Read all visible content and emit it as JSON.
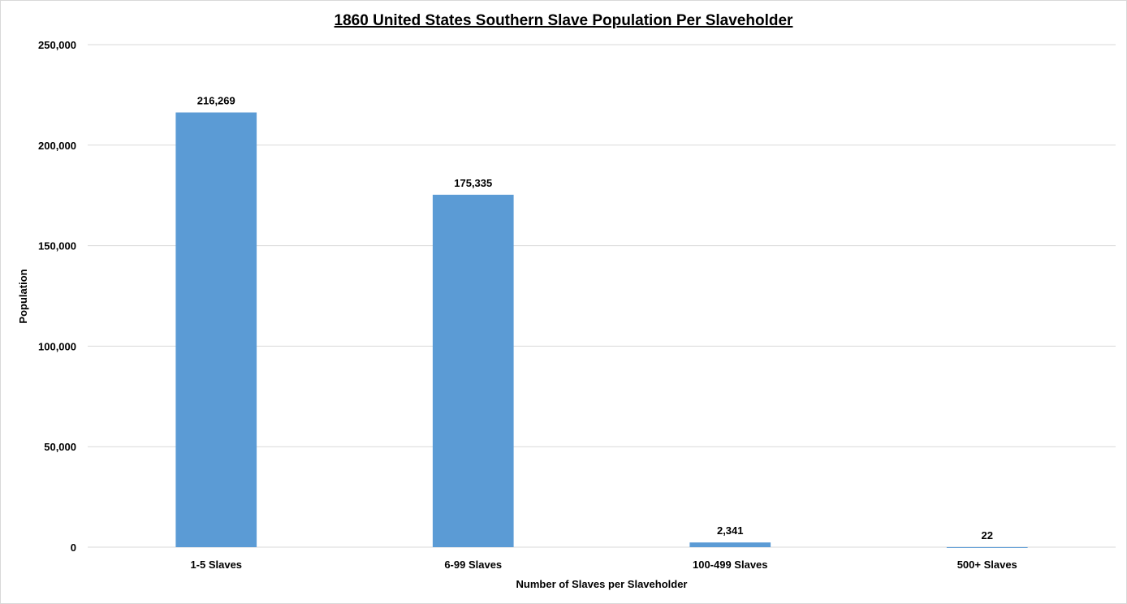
{
  "chart_data": {
    "type": "bar",
    "title": "1860 United States Southern Slave Population Per Slaveholder",
    "xlabel": "Number of Slaves per Slaveholder",
    "ylabel": "Population",
    "categories": [
      "1-5 Slaves",
      "6-99 Slaves",
      "100-499 Slaves",
      "500+ Slaves"
    ],
    "values": [
      216269,
      175335,
      2341,
      22
    ],
    "value_labels": [
      "216,269",
      "175,335",
      "2,341",
      "22"
    ],
    "ylim": [
      0,
      250000
    ],
    "yticks": [
      0,
      50000,
      100000,
      150000,
      200000,
      250000
    ],
    "ytick_labels": [
      "0",
      "50,000",
      "100,000",
      "150,000",
      "200,000",
      "250,000"
    ],
    "grid": true,
    "legend": "none",
    "bar_color": "#5b9bd5",
    "grid_color": "#d9d9d9"
  }
}
